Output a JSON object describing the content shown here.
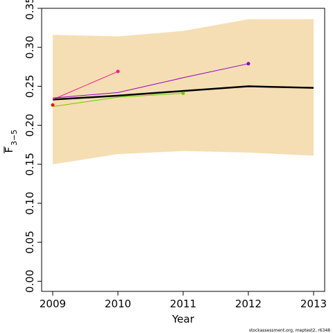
{
  "chart_data": {
    "type": "line",
    "xlabel": "Year",
    "ylabel": "F",
    "ylabel_sub": "3−5",
    "footnote": "stockassessment.org, meptest2, r6348",
    "x": [
      2009,
      2010,
      2011,
      2012,
      2013
    ],
    "xlim": [
      2008.83,
      2013.17
    ],
    "ylim": [
      -0.013,
      0.35
    ],
    "xticks": [
      2009,
      2010,
      2011,
      2012,
      2013
    ],
    "yticks": [
      {
        "value": 0,
        "label": "0.00"
      },
      {
        "value": 0.05,
        "label": "0.05"
      },
      {
        "value": 0.1,
        "label": "0.10"
      },
      {
        "value": 0.15,
        "label": "0.15"
      },
      {
        "value": 0.2,
        "label": "0.20"
      },
      {
        "value": 0.25,
        "label": "0.25"
      },
      {
        "value": 0.3,
        "label": "0.30"
      },
      {
        "value": 0.35,
        "label": "0.35"
      }
    ],
    "band": {
      "color": "#f5deb3",
      "lower": [
        0.15,
        0.163,
        0.167,
        0.165,
        0.161
      ],
      "upper": [
        0.316,
        0.314,
        0.321,
        0.336,
        0.336
      ]
    },
    "series": [
      {
        "color": "#000000",
        "values": [
          0.233,
          0.238,
          0.244,
          0.25,
          0.248
        ]
      },
      {
        "color": "#ff0000",
        "values": [
          0.226,
          null,
          null,
          null,
          null
        ]
      },
      {
        "color": "#66cc00",
        "values": [
          0.224,
          0.236,
          0.241,
          null,
          null
        ]
      },
      {
        "color": "#ff1493",
        "values": [
          0.233,
          0.269,
          null,
          null,
          null
        ]
      },
      {
        "color": "#8b00c8",
        "values": [
          0.235,
          0.242,
          0.261,
          0.279,
          null
        ]
      }
    ]
  }
}
